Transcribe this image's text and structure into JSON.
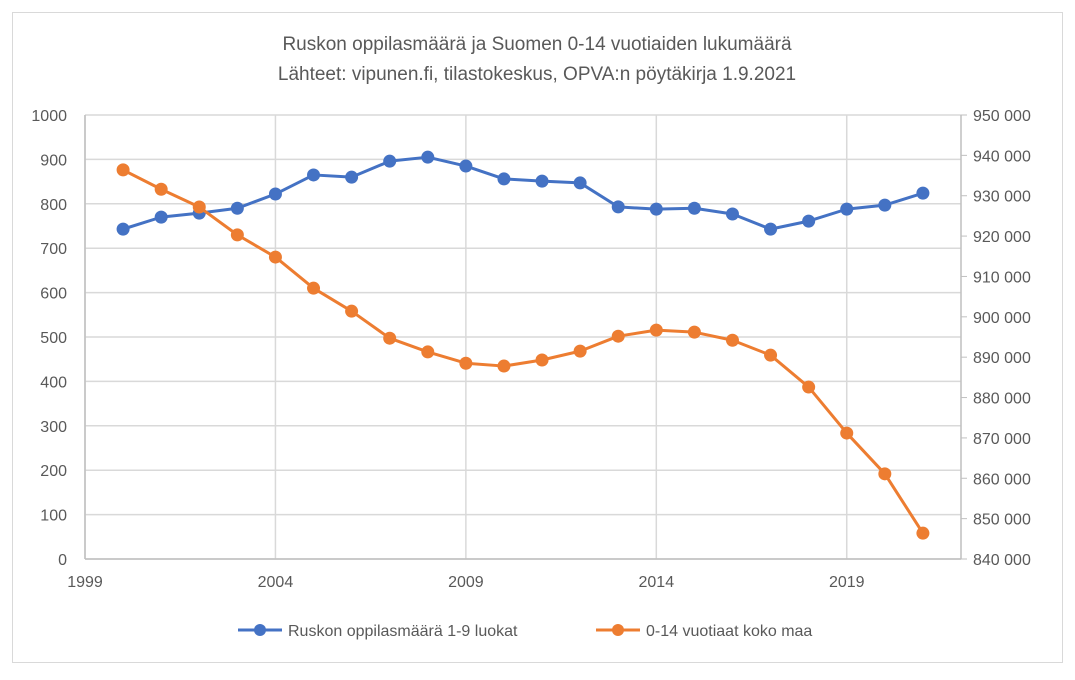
{
  "chart_data": {
    "type": "line",
    "title": "Ruskon oppilasmäärä ja Suomen 0-14 vuotiaiden lukumäärä",
    "subtitle": "Lähteet: vipunen.fi, tilastokeskus, OPVA:n pöytäkirja 1.9.2021",
    "xlabel": "",
    "ylabel": "",
    "xlim": [
      1999,
      2022
    ],
    "x_ticks": [
      1999,
      2004,
      2009,
      2014,
      2019
    ],
    "x_tick_labels": [
      "1999",
      "2004",
      "2009",
      "2014",
      "2019"
    ],
    "ylim_left": [
      0,
      1000
    ],
    "y_ticks_left": [
      "0",
      "100",
      "200",
      "300",
      "400",
      "500",
      "600",
      "700",
      "800",
      "900",
      "1000"
    ],
    "ylim_right": [
      840000,
      950000
    ],
    "y_ticks_right": [
      "840 000",
      "850 000",
      "860 000",
      "870 000",
      "880 000",
      "890 000",
      "900 000",
      "910 000",
      "920 000",
      "930 000",
      "940 000",
      "950 000"
    ],
    "grid": true,
    "legend_position": "bottom",
    "x": [
      2000,
      2001,
      2002,
      2003,
      2004,
      2005,
      2006,
      2007,
      2008,
      2009,
      2010,
      2011,
      2012,
      2013,
      2014,
      2015,
      2016,
      2017,
      2018,
      2019,
      2020,
      2021
    ],
    "series": [
      {
        "name": "Ruskon oppilasmäärä 1-9 luokat",
        "axis": "left",
        "color": "#4472C4",
        "values": [
          743,
          770,
          779,
          790,
          822,
          865,
          860,
          896,
          905,
          885,
          856,
          851,
          847,
          793,
          788,
          790,
          777,
          743,
          761,
          788,
          797,
          824
        ]
      },
      {
        "name": "0-14  vuotiaat koko maa",
        "axis": "right",
        "color": "#ED7D31",
        "values": [
          936400,
          931600,
          927200,
          920300,
          914800,
          907100,
          901400,
          894700,
          891300,
          888500,
          887800,
          889300,
          891500,
          895200,
          896700,
          896200,
          894200,
          890500,
          882600,
          871200,
          861100,
          846400
        ]
      }
    ]
  }
}
